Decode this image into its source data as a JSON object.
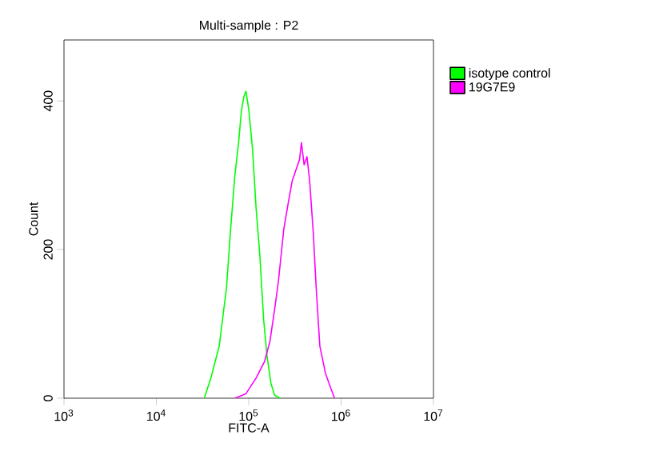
{
  "chart_data": {
    "type": "line",
    "title": "Multi-sample : P2",
    "xlabel": "FITC-A",
    "ylabel": "Count",
    "log": "x",
    "xlim": [
      1000,
      10000000
    ],
    "ylim": [
      0,
      482
    ],
    "xticks": [
      {
        "value": 1000,
        "label": "10$^{3}$"
      },
      {
        "value": 10000,
        "label": "10$^{4}$"
      },
      {
        "value": 100000,
        "label": "10$^{5}$"
      },
      {
        "value": 1000000,
        "label": "10$^{6}$"
      },
      {
        "value": 10000000,
        "label": "10$^{7}$"
      }
    ],
    "yticks": [
      0,
      200,
      400
    ],
    "grid": false,
    "legend": "top right",
    "marker": "none",
    "line_style": "solid",
    "series": [
      {
        "name": "isotype control",
        "color": "#00ff00",
        "x": [
          33000,
          38900,
          47900,
          57500,
          63100,
          70800,
          77600,
          83200,
          89100,
          93300,
          100000,
          110000,
          120000,
          132000,
          145000,
          158000,
          174000,
          191000,
          219000
        ],
        "values": [
          0,
          27,
          70,
          149,
          221,
          300,
          343,
          386,
          407,
          413,
          389,
          335,
          257,
          192,
          106,
          56,
          20,
          4,
          0
        ]
      },
      {
        "name": "19G7E9",
        "color": "#ff00ff",
        "x": [
          70800,
          93300,
          120000,
          148000,
          170000,
          191000,
          209000,
          240000,
          269000,
          295000,
          324000,
          355000,
          372000,
          398000,
          427000,
          457000,
          501000,
          537000,
          589000,
          676000,
          776000,
          851000
        ],
        "values": [
          0,
          6,
          27,
          49,
          77,
          120,
          156,
          228,
          264,
          292,
          307,
          321,
          344,
          314,
          325,
          292,
          221,
          149,
          70,
          34,
          13,
          0
        ]
      }
    ]
  }
}
